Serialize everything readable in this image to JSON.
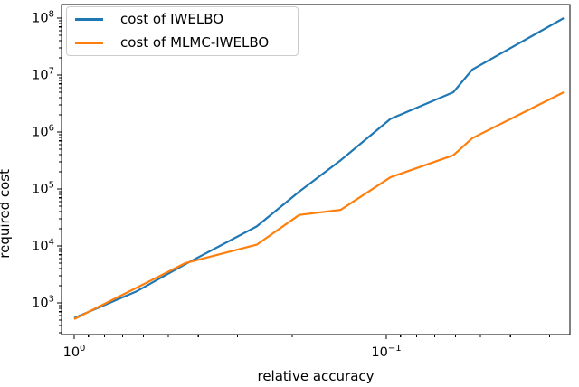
{
  "chart_data": {
    "type": "line",
    "title": "",
    "xlabel": "relative accuracy",
    "ylabel": "required cost",
    "x_scale": "log",
    "y_scale": "log",
    "x_axis_reversed": true,
    "xlim": [
      1.098,
      0.0258
    ],
    "ylim": [
      278,
      173000000
    ],
    "x_major_ticks": [
      1,
      0.1
    ],
    "x_minor_ticks": [
      0.9,
      0.8,
      0.7,
      0.6,
      0.5,
      0.4,
      0.3,
      0.2,
      0.09,
      0.08,
      0.07,
      0.06,
      0.05,
      0.04,
      0.03
    ],
    "y_major_ticks": [
      1000,
      10000,
      100000,
      1000000,
      10000000,
      100000000
    ],
    "grid": false,
    "legend_position": "upper left",
    "axis_color": "#000000",
    "background_color": "#ffffff",
    "series": [
      {
        "name": "cost of IWELBO",
        "color": "#1f77b4",
        "x": [
          1.0,
          0.63,
          0.44,
          0.26,
          0.19,
          0.14,
          0.097,
          0.061,
          0.053,
          0.027
        ],
        "y": [
          540,
          1600,
          4800,
          22000,
          90000,
          320000,
          1700000,
          5000000,
          12500000,
          100000000
        ]
      },
      {
        "name": "cost of MLMC-IWELBO",
        "color": "#ff7f0e",
        "x": [
          1.0,
          0.63,
          0.44,
          0.26,
          0.19,
          0.14,
          0.097,
          0.061,
          0.053,
          0.027
        ],
        "y": [
          520,
          1850,
          5000,
          10500,
          35000,
          43000,
          160000,
          390000,
          780000,
          5000000
        ]
      }
    ]
  }
}
